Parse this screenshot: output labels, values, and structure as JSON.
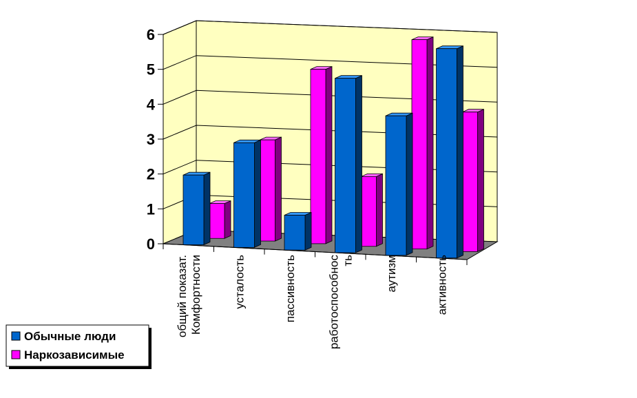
{
  "chart_data": {
    "type": "bar",
    "three_d": true,
    "categories": [
      [
        "общий показат.",
        "Комфортности"
      ],
      [
        "усталость"
      ],
      [
        "пассивность"
      ],
      [
        "работоспособнос",
        "ть"
      ],
      [
        "аутизм"
      ],
      [
        "активность"
      ]
    ],
    "series": [
      {
        "name": "Обычные люди",
        "values": [
          2.0,
          3.0,
          1.0,
          5.0,
          4.0,
          6.0
        ]
      },
      {
        "name": "Наркозависимые",
        "values": [
          1.0,
          2.9,
          5.0,
          2.0,
          6.0,
          4.0
        ]
      }
    ],
    "ylim": [
      0,
      6
    ],
    "yticks": [
      "0",
      "1",
      "2",
      "3",
      "4",
      "5",
      "6"
    ],
    "grid": true,
    "legend_position": "bottom-left",
    "colors": {
      "series1_front": "#0066cc",
      "series1_side": "#003366",
      "series1_top": "#3399ff",
      "series2_front": "#ff00ff",
      "series2_side": "#800080",
      "series2_top": "#ff66ff",
      "wall": "#ffffc0",
      "floor": "#808080",
      "grid": "#000000"
    }
  }
}
